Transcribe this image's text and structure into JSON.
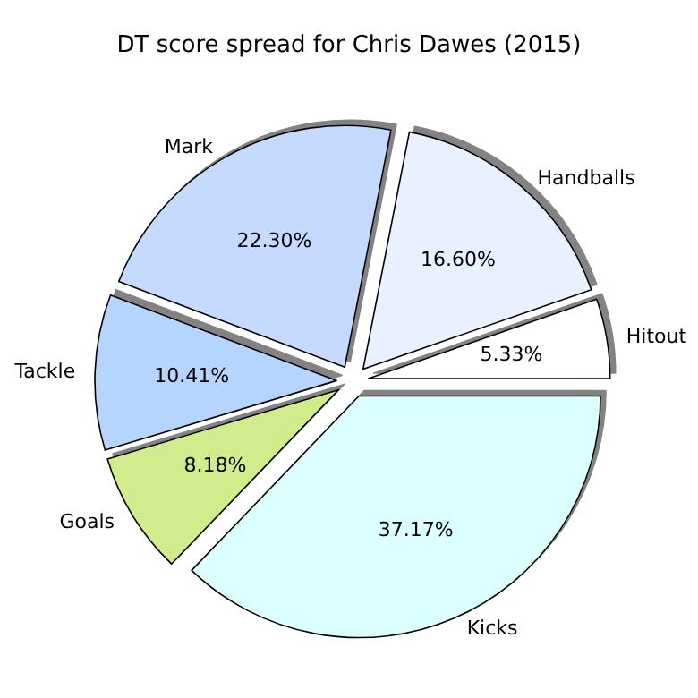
{
  "chart_data": {
    "type": "pie",
    "title": "DT score spread for Chris Dawes (2015)",
    "categories": [
      "Hitout",
      "Handballs",
      "Mark",
      "Tackle",
      "Goals",
      "Kicks"
    ],
    "values": [
      5.33,
      16.6,
      22.3,
      10.41,
      8.18,
      37.17
    ],
    "value_labels": [
      "5.33%",
      "16.60%",
      "22.30%",
      "10.41%",
      "8.18%",
      "37.17%"
    ],
    "colors": [
      "#ffffff",
      "#e9f0ff",
      "#c6d9ff",
      "#b5d5ff",
      "#d1ec8c",
      "#dcffff"
    ],
    "legend": false
  }
}
